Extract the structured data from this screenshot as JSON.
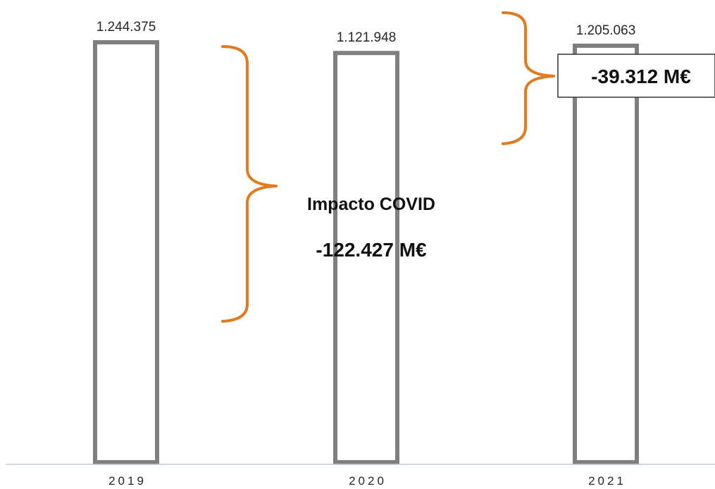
{
  "chart_data": {
    "type": "bar",
    "categories": [
      "2019",
      "2020",
      "2021"
    ],
    "values": [
      1244375,
      1121948,
      1205063
    ],
    "value_labels": [
      "1.244.375",
      "1.121.948",
      "1.205.063"
    ],
    "ylim": [
      0,
      1244375
    ],
    "grid": false,
    "legend": "none",
    "annotations": {
      "covid_title": "Impacto COVID",
      "covid_value": "-122.427 M€",
      "gap_value": "-39.312 M€"
    }
  },
  "colors": {
    "bar_stroke": "#7f7f7f",
    "brace": "#e07b1f",
    "axis": "#bfc9d4"
  }
}
